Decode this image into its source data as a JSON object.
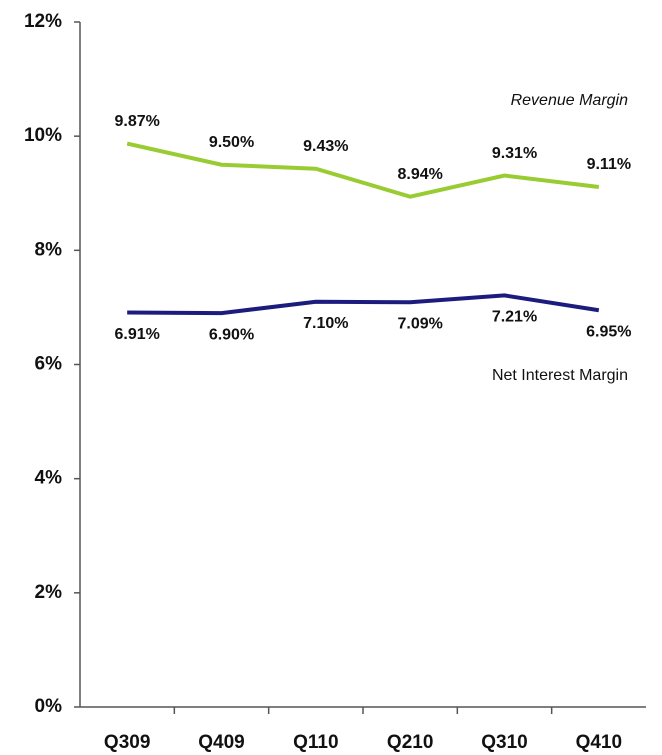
{
  "chart_data": {
    "type": "line",
    "categories": [
      "Q309",
      "Q409",
      "Q110",
      "Q210",
      "Q310",
      "Q410"
    ],
    "series": [
      {
        "name": "Revenue Margin",
        "color": "#99cc33",
        "values": [
          9.87,
          9.5,
          9.43,
          8.94,
          9.31,
          9.11
        ],
        "value_labels": [
          "9.87%",
          "9.50%",
          "9.43%",
          "8.94%",
          "9.31%",
          "9.11%"
        ]
      },
      {
        "name": "Net Interest Margin",
        "color": "#1c1c7e",
        "values": [
          6.91,
          6.9,
          7.1,
          7.09,
          7.21,
          6.95
        ],
        "value_labels": [
          "6.91%",
          "6.90%",
          "7.10%",
          "7.09%",
          "7.21%",
          "6.95%"
        ]
      }
    ],
    "ylim": [
      0,
      12
    ],
    "yticks": [
      {
        "value": 0,
        "label": "0%"
      },
      {
        "value": 2,
        "label": "2%"
      },
      {
        "value": 4,
        "label": "4%"
      },
      {
        "value": 6,
        "label": "6%"
      },
      {
        "value": 8,
        "label": "8%"
      },
      {
        "value": 10,
        "label": "10%"
      },
      {
        "value": 12,
        "label": "12%"
      }
    ],
    "grid": false
  }
}
